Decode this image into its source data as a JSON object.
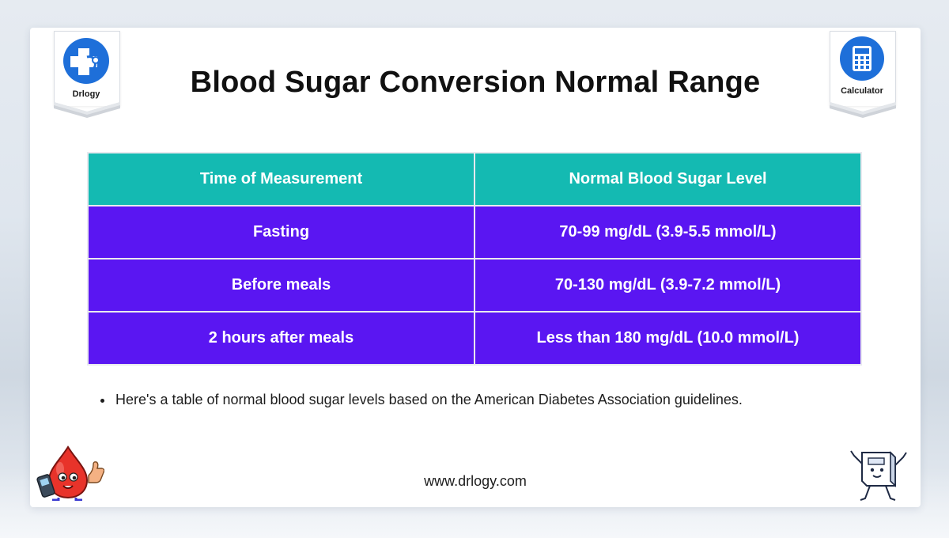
{
  "header": {
    "title": "Blood Sugar Conversion Normal Range"
  },
  "badges": {
    "left": {
      "label": "Drlogy",
      "icon": "stethoscope-cross-icon"
    },
    "right": {
      "label": "Calculator",
      "icon": "calculator-icon"
    }
  },
  "table": {
    "headers": [
      "Time of Measurement",
      "Normal Blood Sugar Level"
    ],
    "rows": [
      [
        "Fasting",
        "70-99 mg/dL (3.9-5.5 mmol/L)"
      ],
      [
        "Before meals",
        "70-130 mg/dL (3.9-7.2 mmol/L)"
      ],
      [
        "2 hours after meals",
        "Less than 180 mg/dL (10.0 mmol/L)"
      ]
    ]
  },
  "note": {
    "text": "Here's a table of normal blood sugar levels based on the American Diabetes Association guidelines."
  },
  "footer": {
    "url": "www.drlogy.com"
  },
  "colors": {
    "header_bg": "#14bab2",
    "row_bg": "#5a16f2",
    "brand_blue": "#1e6fd9"
  }
}
